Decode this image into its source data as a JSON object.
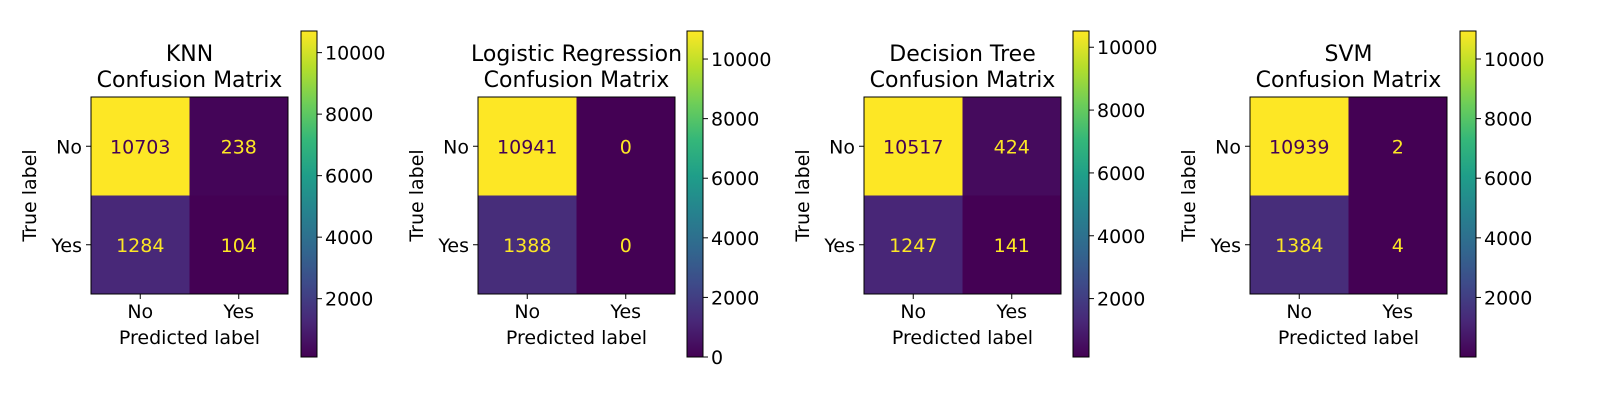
{
  "colors": {
    "viridis_stops": [
      "#440154",
      "#482878",
      "#3e4a89",
      "#31688e",
      "#26828e",
      "#1f9e89",
      "#35b779",
      "#6ece58",
      "#b5de2b",
      "#fde725"
    ],
    "cell_text_on_dark": "#fde725",
    "cell_text_on_light": "#440154"
  },
  "chart_data": [
    {
      "type": "heatmap",
      "title": [
        "KNN",
        "Confusion Matrix"
      ],
      "xlabel": "Predicted label",
      "ylabel": "True label",
      "x_categories": [
        "No",
        "Yes"
      ],
      "y_categories": [
        "No",
        "Yes"
      ],
      "values": [
        [
          10703,
          238
        ],
        [
          1284,
          104
        ]
      ],
      "colorbar": {
        "range": [
          104,
          10703
        ],
        "ticks": [
          2000,
          4000,
          6000,
          8000,
          10000
        ]
      }
    },
    {
      "type": "heatmap",
      "title": [
        "Logistic Regression",
        "Confusion Matrix"
      ],
      "xlabel": "Predicted label",
      "ylabel": "True label",
      "x_categories": [
        "No",
        "Yes"
      ],
      "y_categories": [
        "No",
        "Yes"
      ],
      "values": [
        [
          10941,
          0
        ],
        [
          1388,
          0
        ]
      ],
      "colorbar": {
        "range": [
          0,
          10941
        ],
        "ticks": [
          0,
          2000,
          4000,
          6000,
          8000,
          10000
        ]
      }
    },
    {
      "type": "heatmap",
      "title": [
        "Decision Tree",
        "Confusion Matrix"
      ],
      "xlabel": "Predicted label",
      "ylabel": "True label",
      "x_categories": [
        "No",
        "Yes"
      ],
      "y_categories": [
        "No",
        "Yes"
      ],
      "values": [
        [
          10517,
          424
        ],
        [
          1247,
          141
        ]
      ],
      "colorbar": {
        "range": [
          141,
          10517
        ],
        "ticks": [
          2000,
          4000,
          6000,
          8000,
          10000
        ]
      }
    },
    {
      "type": "heatmap",
      "title": [
        "SVM",
        "Confusion Matrix"
      ],
      "xlabel": "Predicted label",
      "ylabel": "True label",
      "x_categories": [
        "No",
        "Yes"
      ],
      "y_categories": [
        "No",
        "Yes"
      ],
      "values": [
        [
          10939,
          2
        ],
        [
          1384,
          4
        ]
      ],
      "colorbar": {
        "range": [
          2,
          10939
        ],
        "ticks": [
          2000,
          4000,
          6000,
          8000,
          10000
        ]
      }
    }
  ]
}
